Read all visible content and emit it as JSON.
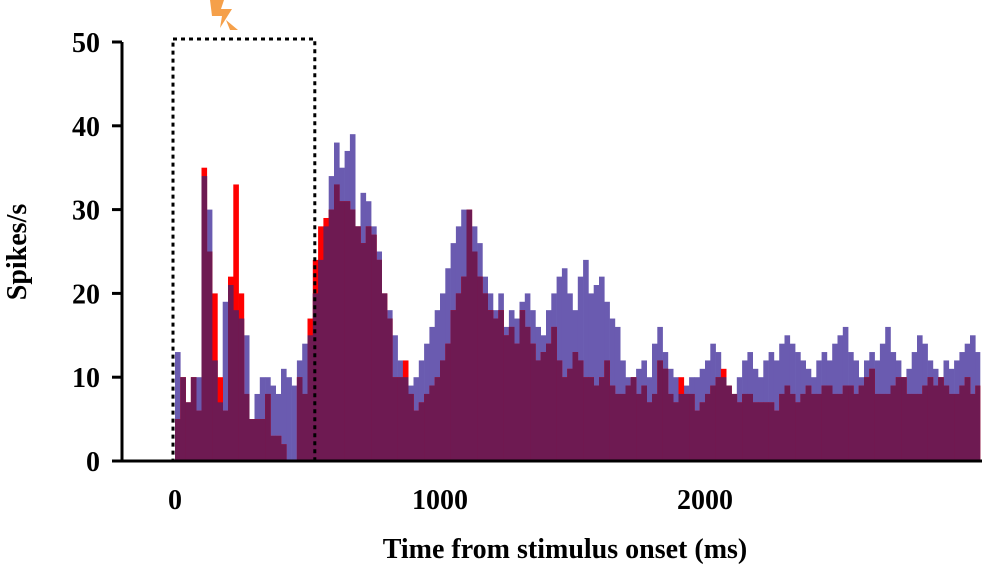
{
  "chart_data": {
    "type": "bar",
    "title": "",
    "xlabel": "Time from stimulus onset (ms)",
    "ylabel": "Spikes/s",
    "xlim": [
      -200,
      3000
    ],
    "ylim": [
      0,
      50
    ],
    "x_ticks": [
      0,
      1000,
      2000
    ],
    "y_ticks": [
      0,
      10,
      20,
      30,
      40,
      50
    ],
    "grid": false,
    "legend": "none",
    "bin_width_ms": 20,
    "bin_start_ms": 0,
    "series": [
      {
        "color": "#ff0000",
        "values": [
          5,
          10,
          7,
          10,
          6,
          35,
          25,
          20,
          10,
          6,
          22,
          33,
          20,
          8,
          5,
          5,
          5,
          8,
          3,
          3,
          2,
          0,
          0,
          10,
          8,
          17,
          24,
          28,
          29,
          30,
          33,
          31,
          31,
          30,
          28,
          26,
          28,
          27,
          24,
          20,
          17,
          10,
          10,
          12,
          8,
          6,
          7,
          8,
          9,
          10,
          12,
          14,
          18,
          20,
          22,
          30,
          25,
          22,
          20,
          18,
          17,
          18,
          15,
          16,
          14,
          18,
          16,
          14,
          12,
          13,
          14,
          16,
          12,
          10,
          11,
          13,
          12,
          10,
          10,
          9,
          10,
          12,
          9,
          8,
          8,
          9,
          10,
          8,
          9,
          7,
          8,
          12,
          11,
          8,
          7,
          10,
          8,
          8,
          6,
          7,
          8,
          9,
          10,
          11,
          9,
          8,
          7,
          8,
          8,
          7,
          7,
          7,
          7,
          6,
          8,
          9,
          8,
          7,
          8,
          9,
          8,
          8,
          9,
          9,
          8,
          8,
          9,
          9,
          8,
          9,
          10,
          11,
          8,
          8,
          8,
          9,
          10,
          10,
          8,
          8,
          8,
          9,
          10,
          9,
          10,
          9,
          8,
          8,
          9,
          10,
          8,
          9,
          9,
          8,
          8,
          9,
          9,
          8,
          9,
          10,
          14,
          10
        ]
      },
      {
        "color": "#6a5bb0",
        "values": [
          13,
          10,
          7,
          10,
          10,
          34,
          30,
          12,
          7,
          19,
          21,
          18,
          17,
          15,
          5,
          8,
          10,
          10,
          9,
          8,
          11,
          10,
          9,
          12,
          14,
          15,
          20,
          24,
          28,
          34,
          38,
          35,
          37,
          39,
          28,
          32,
          31,
          28,
          25,
          20,
          18,
          15,
          12,
          10,
          9,
          10,
          12,
          14,
          16,
          18,
          20,
          23,
          26,
          28,
          30,
          30,
          28,
          26,
          22,
          20,
          18,
          20,
          16,
          18,
          17,
          19,
          20,
          18,
          16,
          15,
          18,
          20,
          22,
          23,
          20,
          18,
          22,
          24,
          20,
          21,
          22,
          19,
          17,
          16,
          12,
          10,
          10,
          11,
          12,
          10,
          14,
          16,
          13,
          11,
          10,
          8,
          9,
          10,
          10,
          11,
          12,
          14,
          13,
          10,
          9,
          8,
          10,
          12,
          13,
          11,
          10,
          12,
          13,
          12,
          14,
          15,
          14,
          13,
          12,
          11,
          10,
          12,
          13,
          12,
          14,
          15,
          16,
          13,
          12,
          10,
          12,
          13,
          12,
          14,
          16,
          13,
          12,
          10,
          11,
          13,
          15,
          14,
          12,
          11,
          10,
          12,
          11,
          12,
          13,
          14,
          15,
          13,
          12,
          11,
          12,
          13,
          14,
          12,
          11,
          12,
          13,
          14
        ]
      }
    ],
    "annotations": {
      "highlight_window_ms": [
        0,
        520
      ],
      "stimulus_marker": "lightning-bolt"
    }
  }
}
